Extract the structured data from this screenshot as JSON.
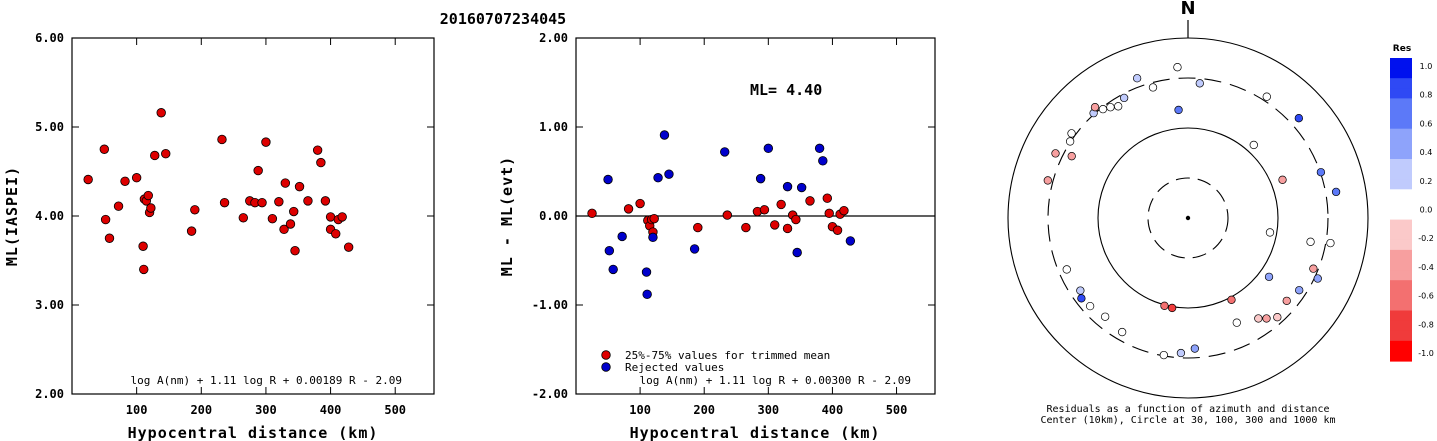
{
  "header": {
    "event_id": "20160707234045"
  },
  "colors": {
    "red_marker": "#dd0000",
    "blue_marker": "#0000cc",
    "rejected_label": "blue",
    "trimmed_label": "red"
  },
  "chart_data": [
    {
      "type": "scatter",
      "id": "left",
      "xlabel": "Hypocentral distance (km)",
      "ylabel": "ML(IASPEI)",
      "xlim": [
        0,
        560
      ],
      "ylim": [
        2.0,
        6.0
      ],
      "xticks": [
        "100",
        "200",
        "300",
        "400",
        "500"
      ],
      "yticks": [
        "2.00",
        "3.00",
        "4.00",
        "5.00",
        "6.00"
      ],
      "formula": "log A(nm) + 1.11 log R + 0.00189 R - 2.09",
      "points": [
        [
          25,
          4.41
        ],
        [
          50,
          4.75
        ],
        [
          52,
          3.96
        ],
        [
          58,
          3.75
        ],
        [
          72,
          4.11
        ],
        [
          82,
          4.39
        ],
        [
          100,
          4.43
        ],
        [
          110,
          3.66
        ],
        [
          111,
          3.4
        ],
        [
          112,
          4.19
        ],
        [
          115,
          4.17
        ],
        [
          118,
          4.23
        ],
        [
          120,
          4.04
        ],
        [
          122,
          4.09
        ],
        [
          128,
          4.68
        ],
        [
          138,
          5.16
        ],
        [
          145,
          4.7
        ],
        [
          185,
          3.83
        ],
        [
          190,
          4.07
        ],
        [
          232,
          4.86
        ],
        [
          236,
          4.15
        ],
        [
          265,
          3.98
        ],
        [
          275,
          4.17
        ],
        [
          283,
          4.15
        ],
        [
          288,
          4.51
        ],
        [
          294,
          4.15
        ],
        [
          300,
          4.83
        ],
        [
          310,
          3.97
        ],
        [
          320,
          4.16
        ],
        [
          328,
          3.85
        ],
        [
          330,
          4.37
        ],
        [
          338,
          3.91
        ],
        [
          343,
          4.05
        ],
        [
          345,
          3.61
        ],
        [
          352,
          4.33
        ],
        [
          365,
          4.17
        ],
        [
          380,
          4.74
        ],
        [
          385,
          4.6
        ],
        [
          392,
          4.17
        ],
        [
          400,
          3.85
        ],
        [
          400,
          3.99
        ],
        [
          408,
          3.8
        ],
        [
          412,
          3.96
        ],
        [
          418,
          3.99
        ],
        [
          428,
          3.65
        ]
      ]
    },
    {
      "type": "scatter",
      "id": "middle",
      "xlabel": "Hypocentral distance (km)",
      "ylabel": "ML - ML(evt)",
      "xlim": [
        0,
        560
      ],
      "ylim": [
        -2.0,
        2.0
      ],
      "xticks": [
        "100",
        "200",
        "300",
        "400",
        "500"
      ],
      "yticks": [
        "-2.00",
        "-1.00",
        "0.00",
        "1.00",
        "2.00"
      ],
      "ml_label": "ML= 4.40",
      "formula": "log A(nm) + 1.11 log R + 0.00300 R - 2.09",
      "legend": [
        {
          "label": "25%-75% values for trimmed mean",
          "color": "red"
        },
        {
          "label": "Rejected values",
          "color": "blue"
        }
      ],
      "series": [
        {
          "name": "25%-75% values for trimmed mean",
          "color": "red",
          "points": [
            [
              25,
              0.03
            ],
            [
              82,
              0.08
            ],
            [
              100,
              0.14
            ],
            [
              112,
              -0.05
            ],
            [
              115,
              -0.11
            ],
            [
              118,
              -0.04
            ],
            [
              120,
              -0.18
            ],
            [
              122,
              -0.03
            ],
            [
              190,
              -0.13
            ],
            [
              236,
              0.01
            ],
            [
              265,
              -0.13
            ],
            [
              283,
              0.05
            ],
            [
              294,
              0.07
            ],
            [
              310,
              -0.1
            ],
            [
              320,
              0.13
            ],
            [
              330,
              -0.14
            ],
            [
              338,
              0.01
            ],
            [
              343,
              -0.04
            ],
            [
              365,
              0.17
            ],
            [
              392,
              0.2
            ],
            [
              395,
              0.03
            ],
            [
              400,
              -0.12
            ],
            [
              408,
              -0.16
            ],
            [
              412,
              0.02
            ],
            [
              418,
              0.06
            ]
          ]
        },
        {
          "name": "Rejected values",
          "color": "blue",
          "points": [
            [
              50,
              0.41
            ],
            [
              52,
              -0.39
            ],
            [
              58,
              -0.6
            ],
            [
              72,
              -0.23
            ],
            [
              110,
              -0.63
            ],
            [
              111,
              -0.88
            ],
            [
              120,
              -0.24
            ],
            [
              128,
              0.43
            ],
            [
              138,
              0.91
            ],
            [
              145,
              0.47
            ],
            [
              185,
              -0.37
            ],
            [
              232,
              0.72
            ],
            [
              288,
              0.42
            ],
            [
              300,
              0.76
            ],
            [
              330,
              0.33
            ],
            [
              345,
              -0.41
            ],
            [
              352,
              0.32
            ],
            [
              380,
              0.76
            ],
            [
              385,
              0.62
            ],
            [
              428,
              -0.28
            ]
          ]
        }
      ]
    },
    {
      "type": "scatter",
      "id": "polar",
      "north_label": "N",
      "caption_line1": "Residuals as a function of azimuth and distance",
      "caption_line2": "Center (10km), Circle at 30, 100, 300 and 1000 km",
      "colorbar": {
        "title": "Res",
        "ticks": [
          "1.0",
          "0.8",
          "0.6",
          "0.4",
          "0.2",
          "0.0",
          "-0.2",
          "-0.4",
          "-0.6",
          "-0.8",
          "-1.0"
        ],
        "stops": [
          "#0011ee",
          "#2f49f4",
          "#5c79f8",
          "#8ea3fb",
          "#c0cbfd",
          "#ffffff",
          "#fbc9c9",
          "#f79f9f",
          "#f37070",
          "#f03b3b",
          "#ff0000"
        ]
      },
      "stations": [
        {
          "az": -20,
          "dist": 390,
          "res": 0.2
        },
        {
          "az": -4,
          "dist": 420,
          "res": 0.0
        },
        {
          "az": 5,
          "dist": 270,
          "res": 0.25
        },
        {
          "az": 33,
          "dist": 345,
          "res": 0.0
        },
        {
          "az": 48,
          "dist": 395,
          "res": 0.8
        },
        {
          "az": 80,
          "dist": 410,
          "res": 0.6
        },
        {
          "az": 71,
          "dist": 305,
          "res": 0.6
        },
        {
          "az": 100,
          "dist": 345,
          "res": 0.0
        },
        {
          "az": 101,
          "dist": 215,
          "res": 0.0
        },
        {
          "az": 112,
          "dist": 270,
          "res": -0.3
        },
        {
          "az": 115,
          "dist": 330,
          "res": 0.4
        },
        {
          "az": 123,
          "dist": 255,
          "res": 0.5
        },
        {
          "az": 130,
          "dist": 235,
          "res": -0.3
        },
        {
          "az": 138,
          "dist": 260,
          "res": -0.15
        },
        {
          "az": 142,
          "dist": 228,
          "res": -0.35
        },
        {
          "az": 145,
          "dist": 205,
          "res": -0.1
        },
        {
          "az": 155,
          "dist": 175,
          "res": 0.0
        },
        {
          "az": 177,
          "dist": 245,
          "res": 0.4
        },
        {
          "az": 183,
          "dist": 270,
          "res": 0.3
        },
        {
          "az": 190,
          "dist": 295,
          "res": 0.0
        },
        {
          "az": 195,
          "dist": 102,
          "res": -0.6
        },
        {
          "az": 190,
          "dist": 103,
          "res": -0.7
        },
        {
          "az": 210,
          "dist": 250,
          "res": 0.0
        },
        {
          "az": 220,
          "dist": 235,
          "res": 0.0
        },
        {
          "az": 228,
          "dist": 250,
          "res": 0.0
        },
        {
          "az": 233,
          "dist": 260,
          "res": 0.8
        },
        {
          "az": 236,
          "dist": 240,
          "res": 0.2
        },
        {
          "az": 247,
          "dist": 250,
          "res": 0.0
        },
        {
          "az": 285,
          "dist": 350,
          "res": -0.4
        },
        {
          "az": 296,
          "dist": 375,
          "res": -0.3
        },
        {
          "az": 303,
          "dist": 305,
          "res": 0.0
        },
        {
          "az": 306,
          "dist": 338,
          "res": 0.0
        },
        {
          "az": 318,
          "dist": 310,
          "res": 0.3
        },
        {
          "az": 320,
          "dist": 345,
          "res": -0.3
        },
        {
          "az": 322,
          "dist": 288,
          "res": 0.0
        },
        {
          "az": 325,
          "dist": 270,
          "res": 0.1
        },
        {
          "az": 328,
          "dist": 250,
          "res": 0.0
        },
        {
          "az": 345,
          "dist": 270,
          "res": -0.05
        },
        {
          "az": 332,
          "dist": 275,
          "res": 0.2
        },
        {
          "az": 298,
          "dist": 250,
          "res": -0.3
        },
        {
          "az": 42,
          "dist": 120,
          "res": 0.0
        },
        {
          "az": 100,
          "dist": 85,
          "res": 0.0
        },
        {
          "az": 126,
          "dist": 125,
          "res": 0.4
        },
        {
          "az": 152,
          "dist": 106,
          "res": -0.5
        },
        {
          "az": 68,
          "dist": 130,
          "res": -0.3
        },
        {
          "az": 355,
          "dist": 150,
          "res": 0.6
        }
      ]
    }
  ]
}
